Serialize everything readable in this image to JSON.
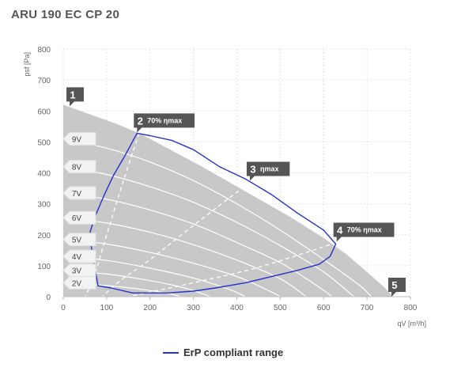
{
  "title": "ARU 190 EC CP 20",
  "colors": {
    "envelope": "#c8c8c8",
    "erp_line": "#2233cc",
    "marker": "#555555",
    "speed_curve": "#ffffff",
    "grid": "#e6e6e6"
  },
  "legend": {
    "erp_label": "ErP compliant range"
  },
  "chart_data": {
    "type": "line",
    "title": "ARU 190 EC CP 20",
    "xlabel": "qV [m³/h]",
    "ylabel": "psf [Pa]",
    "xlim": [
      0,
      800
    ],
    "ylim": [
      0,
      800
    ],
    "xticks": [
      0,
      100,
      200,
      300,
      400,
      500,
      600,
      700,
      800
    ],
    "yticks": [
      0,
      100,
      200,
      300,
      400,
      500,
      600,
      700,
      800
    ],
    "grid": true,
    "envelope": [
      [
        0,
        620
      ],
      [
        60,
        590
      ],
      [
        120,
        560
      ],
      [
        175,
        528
      ],
      [
        240,
        480
      ],
      [
        320,
        420
      ],
      [
        420,
        340
      ],
      [
        520,
        260
      ],
      [
        600,
        190
      ],
      [
        650,
        140
      ],
      [
        700,
        80
      ],
      [
        740,
        30
      ],
      [
        760,
        0
      ],
      [
        0,
        0
      ]
    ],
    "speed_curves": [
      {
        "label": "9V",
        "points": [
          [
            0,
            510
          ],
          [
            100,
            480
          ],
          [
            200,
            435
          ],
          [
            300,
            375
          ],
          [
            400,
            300
          ],
          [
            500,
            215
          ],
          [
            600,
            120
          ],
          [
            680,
            40
          ],
          [
            710,
            0
          ]
        ]
      },
      {
        "label": "8V",
        "points": [
          [
            0,
            420
          ],
          [
            100,
            395
          ],
          [
            200,
            355
          ],
          [
            300,
            305
          ],
          [
            400,
            240
          ],
          [
            500,
            165
          ],
          [
            600,
            80
          ],
          [
            670,
            0
          ]
        ]
      },
      {
        "label": "7V",
        "points": [
          [
            0,
            335
          ],
          [
            100,
            315
          ],
          [
            200,
            280
          ],
          [
            300,
            235
          ],
          [
            400,
            175
          ],
          [
            500,
            110
          ],
          [
            580,
            40
          ],
          [
            620,
            0
          ]
        ]
      },
      {
        "label": "6V",
        "points": [
          [
            0,
            255
          ],
          [
            100,
            238
          ],
          [
            200,
            208
          ],
          [
            300,
            168
          ],
          [
            400,
            118
          ],
          [
            500,
            58
          ],
          [
            560,
            0
          ]
        ]
      },
      {
        "label": "5V",
        "points": [
          [
            0,
            185
          ],
          [
            100,
            170
          ],
          [
            200,
            143
          ],
          [
            300,
            108
          ],
          [
            400,
            65
          ],
          [
            480,
            15
          ],
          [
            500,
            0
          ]
        ]
      },
      {
        "label": "4V",
        "points": [
          [
            0,
            130
          ],
          [
            100,
            117
          ],
          [
            200,
            92
          ],
          [
            300,
            60
          ],
          [
            380,
            25
          ],
          [
            420,
            0
          ]
        ]
      },
      {
        "label": "3V",
        "points": [
          [
            0,
            85
          ],
          [
            100,
            73
          ],
          [
            200,
            52
          ],
          [
            280,
            28
          ],
          [
            340,
            0
          ]
        ]
      },
      {
        "label": "2V",
        "points": [
          [
            0,
            45
          ],
          [
            100,
            36
          ],
          [
            200,
            20
          ],
          [
            250,
            8
          ],
          [
            270,
            0
          ]
        ]
      }
    ],
    "efficiency_lines": [
      {
        "label": "70% ηmax",
        "points": [
          [
            175,
            528
          ],
          [
            140,
            380
          ],
          [
            100,
            200
          ],
          [
            70,
            60
          ],
          [
            50,
            0
          ]
        ]
      },
      {
        "label": "ηmax",
        "points": [
          [
            430,
            370
          ],
          [
            300,
            230
          ],
          [
            200,
            120
          ],
          [
            130,
            50
          ],
          [
            90,
            0
          ]
        ]
      },
      {
        "label": "70% ηmax",
        "points": [
          [
            630,
            175
          ],
          [
            450,
            95
          ],
          [
            300,
            45
          ],
          [
            200,
            15
          ],
          [
            150,
            0
          ]
        ]
      }
    ],
    "erp_range": [
      [
        60,
        200
      ],
      [
        72,
        255
      ],
      [
        95,
        330
      ],
      [
        115,
        390
      ],
      [
        140,
        450
      ],
      [
        170,
        528
      ],
      [
        200,
        520
      ],
      [
        250,
        505
      ],
      [
        300,
        475
      ],
      [
        360,
        420
      ],
      [
        420,
        380
      ],
      [
        480,
        330
      ],
      [
        540,
        270
      ],
      [
        600,
        215
      ],
      [
        628,
        170
      ],
      [
        615,
        130
      ],
      [
        590,
        105
      ],
      [
        540,
        85
      ],
      [
        480,
        65
      ],
      [
        420,
        45
      ],
      [
        350,
        28
      ],
      [
        300,
        18
      ],
      [
        240,
        12
      ],
      [
        160,
        12
      ],
      [
        110,
        28
      ],
      [
        80,
        35
      ]
    ],
    "markers": [
      {
        "num": "1",
        "text": "",
        "x": 0,
        "y": 620
      },
      {
        "num": "2",
        "text": "70% ηmax",
        "x": 170,
        "y": 528
      },
      {
        "num": "3",
        "text": "ηmax",
        "x": 430,
        "y": 372
      },
      {
        "num": "4",
        "text": "70% ηmax",
        "x": 630,
        "y": 175
      },
      {
        "num": "5",
        "text": "",
        "x": 760,
        "y": 0
      }
    ]
  }
}
